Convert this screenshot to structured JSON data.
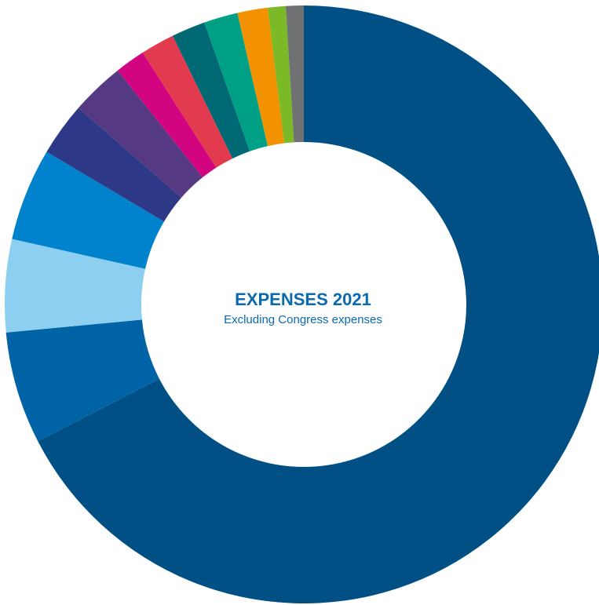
{
  "chart_data": {
    "type": "pie",
    "donut": true,
    "title": "EXPENSES 2021",
    "subtitle": "Excluding Congress expenses",
    "start_angle_deg": 0,
    "direction": "clockwise",
    "slices": [
      {
        "value": 70.0,
        "color": "#005085"
      },
      {
        "value": 6.3,
        "color": "#0063a6"
      },
      {
        "value": 5.2,
        "color": "#8dcff1"
      },
      {
        "value": 5.2,
        "color": "#0083cc"
      },
      {
        "value": 3.0,
        "color": "#2d3886"
      },
      {
        "value": 3.0,
        "color": "#553983"
      },
      {
        "value": 1.7,
        "color": "#d3047f"
      },
      {
        "value": 1.9,
        "color": "#e23a4e"
      },
      {
        "value": 1.9,
        "color": "#006973"
      },
      {
        "value": 1.9,
        "color": "#00a086"
      },
      {
        "value": 1.7,
        "color": "#f39200"
      },
      {
        "value": 1.0,
        "color": "#7bb927"
      },
      {
        "value": 1.0,
        "color": "#707173"
      }
    ]
  }
}
